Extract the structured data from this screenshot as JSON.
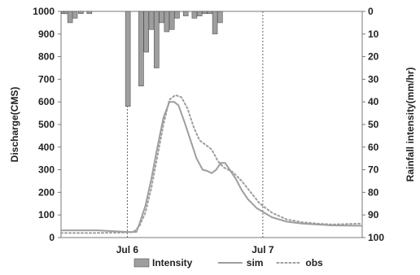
{
  "chart_data": {
    "type": "bar+line",
    "left_axis": {
      "label": "Discharge(CMS)",
      "range": [
        0,
        1000
      ],
      "ticks": [
        0,
        100,
        200,
        300,
        400,
        500,
        600,
        700,
        800,
        900,
        1000
      ]
    },
    "right_axis": {
      "label": "Rainfall intensity(mm/hr)",
      "range": [
        0,
        100
      ],
      "inverted": true,
      "ticks": [
        0,
        10,
        20,
        30,
        40,
        50,
        60,
        70,
        80,
        90,
        100
      ]
    },
    "x_axis": {
      "range": [
        0,
        100
      ],
      "tick_labels": [
        {
          "x": 22,
          "label": "Jul 6"
        },
        {
          "x": 67,
          "label": "Jul 7"
        }
      ],
      "grid": "dotted vertical at tick labels"
    },
    "series": [
      {
        "name": "Intensity",
        "type": "bar",
        "axis": "right",
        "color": "#9e9e9e",
        "bars": [
          {
            "x": 1.0,
            "value": 1
          },
          {
            "x": 1.7,
            "value": 1
          },
          {
            "x": 3.0,
            "value": 5
          },
          {
            "x": 4.6,
            "value": 3
          },
          {
            "x": 6.6,
            "value": 1
          },
          {
            "x": 9.4,
            "value": 1
          },
          {
            "x": 22.2,
            "value": 42
          },
          {
            "x": 26.6,
            "value": 33
          },
          {
            "x": 28.3,
            "value": 18
          },
          {
            "x": 30.0,
            "value": 8
          },
          {
            "x": 31.7,
            "value": 25
          },
          {
            "x": 33.4,
            "value": 5
          },
          {
            "x": 35.1,
            "value": 9
          },
          {
            "x": 36.8,
            "value": 8
          },
          {
            "x": 38.5,
            "value": 3
          },
          {
            "x": 41.4,
            "value": 2
          },
          {
            "x": 44.3,
            "value": 3
          },
          {
            "x": 46.0,
            "value": 2
          },
          {
            "x": 47.7,
            "value": 1
          },
          {
            "x": 49.4,
            "value": 1
          },
          {
            "x": 51.1,
            "value": 10
          },
          {
            "x": 52.8,
            "value": 5
          }
        ]
      },
      {
        "name": "sim",
        "type": "line",
        "axis": "left",
        "color": "#9e9e9e",
        "dash": "solid",
        "points": [
          [
            0,
            32
          ],
          [
            12,
            32
          ],
          [
            18,
            28
          ],
          [
            22,
            25
          ],
          [
            25,
            25
          ],
          [
            26,
            60
          ],
          [
            28,
            140
          ],
          [
            30,
            260
          ],
          [
            32,
            400
          ],
          [
            34,
            530
          ],
          [
            36,
            600
          ],
          [
            37.5,
            600
          ],
          [
            39,
            585
          ],
          [
            41,
            510
          ],
          [
            43,
            430
          ],
          [
            45,
            350
          ],
          [
            47,
            300
          ],
          [
            48.5,
            295
          ],
          [
            50,
            285
          ],
          [
            51.5,
            300
          ],
          [
            53,
            330
          ],
          [
            54.5,
            330
          ],
          [
            56,
            300
          ],
          [
            58,
            260
          ],
          [
            60,
            210
          ],
          [
            62,
            170
          ],
          [
            65,
            130
          ],
          [
            70,
            90
          ],
          [
            75,
            70
          ],
          [
            80,
            62
          ],
          [
            85,
            58
          ],
          [
            90,
            54
          ],
          [
            100,
            52
          ]
        ]
      },
      {
        "name": "obs",
        "type": "line",
        "axis": "left",
        "color": "#9e9e9e",
        "dash": "dotted",
        "points": [
          [
            0,
            20
          ],
          [
            10,
            20
          ],
          [
            20,
            22
          ],
          [
            24,
            24
          ],
          [
            26,
            50
          ],
          [
            28,
            110
          ],
          [
            30,
            220
          ],
          [
            32,
            360
          ],
          [
            34,
            500
          ],
          [
            36,
            610
          ],
          [
            38,
            630
          ],
          [
            40,
            620
          ],
          [
            42,
            570
          ],
          [
            44,
            490
          ],
          [
            46,
            430
          ],
          [
            48,
            410
          ],
          [
            50,
            390
          ],
          [
            52,
            340
          ],
          [
            54,
            310
          ],
          [
            57,
            290
          ],
          [
            60,
            250
          ],
          [
            63,
            200
          ],
          [
            66,
            150
          ],
          [
            70,
            110
          ],
          [
            75,
            80
          ],
          [
            80,
            68
          ],
          [
            85,
            62
          ],
          [
            90,
            58
          ],
          [
            95,
            60
          ],
          [
            100,
            62
          ]
        ]
      }
    ],
    "legend": {
      "position": "bottom",
      "items": [
        "Intensity",
        "sim",
        "obs"
      ]
    }
  }
}
